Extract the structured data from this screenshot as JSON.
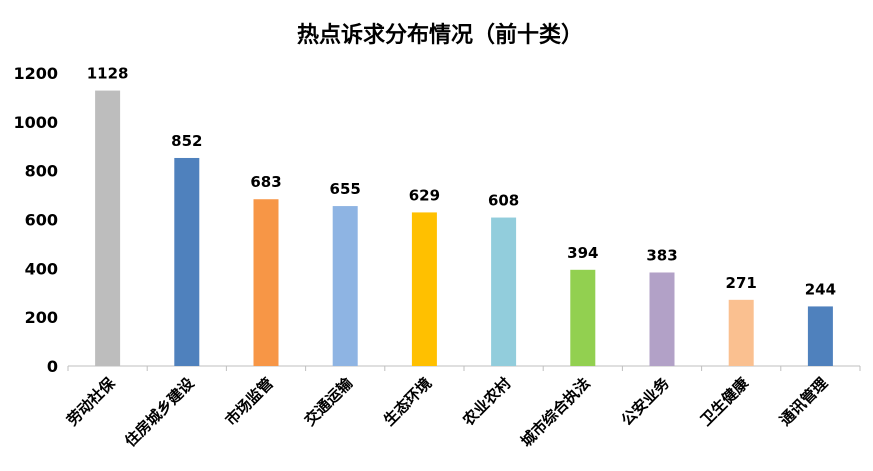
{
  "chart_data": {
    "type": "bar",
    "title": "热点诉求分布情况（前十类）",
    "xlabel": "",
    "ylabel": "",
    "ylim": [
      0,
      1200
    ],
    "y_ticks": [
      "0",
      "200",
      "400",
      "600",
      "800",
      "1000",
      "1200"
    ],
    "grid": false,
    "legend": "none",
    "categories": [
      "劳动社保",
      "住房城乡建设",
      "市场监管",
      "交通运输",
      "生态环境",
      "农业农村",
      "城市综合执法",
      "公安业务",
      "卫生健康",
      "通讯管理"
    ],
    "values": [
      1128,
      852,
      683,
      655,
      629,
      608,
      394,
      383,
      271,
      244
    ],
    "colors": [
      "#BDBDBD",
      "#4F81BD",
      "#F79646",
      "#8EB4E3",
      "#FFC000",
      "#92CDDC",
      "#92D050",
      "#B2A1C7",
      "#FAC090",
      "#4F81BD"
    ]
  }
}
